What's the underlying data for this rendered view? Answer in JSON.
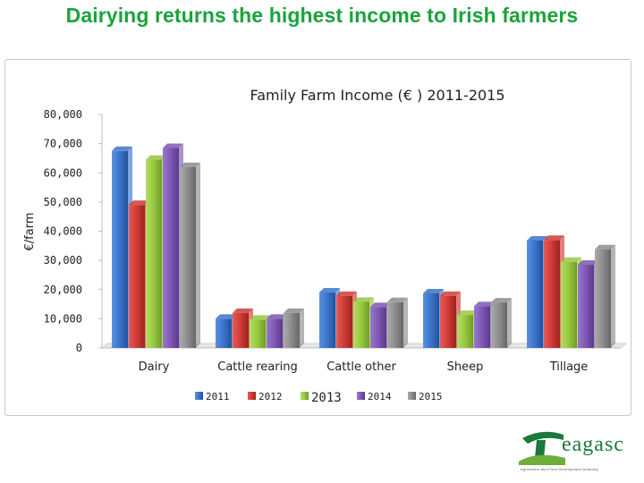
{
  "page": {
    "title": "Dairying returns the highest income to Irish farmers",
    "logo_text": "eagasc",
    "logo_subtext": "Agriculture and Food Development Authority"
  },
  "colors": {
    "title": "#1aa33c",
    "series": [
      "#3a73c9",
      "#cf3a35",
      "#97c83f",
      "#7e57b4",
      "#8c8c8c"
    ]
  },
  "chart_data": {
    "type": "bar",
    "title": "Family Farm Income (€ ) 2011-2015",
    "xlabel": "",
    "ylabel": "€/farm",
    "ylim": [
      0,
      80000
    ],
    "yticks": [
      0,
      10000,
      20000,
      30000,
      40000,
      50000,
      60000,
      70000,
      80000
    ],
    "ytick_labels": [
      "0",
      "10,000",
      "20,000",
      "30,000",
      "40,000",
      "50,000",
      "60,000",
      "70,000",
      "80,000"
    ],
    "grid": false,
    "legend_position": "bottom",
    "categories": [
      "Dairy",
      "Cattle rearing",
      "Cattle other",
      "Sheep",
      "Tillage"
    ],
    "series": [
      {
        "name": "2011",
        "values": [
          67500,
          10000,
          19000,
          18700,
          36800
        ]
      },
      {
        "name": "2012",
        "values": [
          49000,
          12000,
          17800,
          17800,
          37000
        ]
      },
      {
        "name": "2013",
        "values": [
          64500,
          9700,
          15800,
          11300,
          29500
        ]
      },
      {
        "name": "2014",
        "values": [
          68500,
          10000,
          14000,
          14300,
          28500
        ]
      },
      {
        "name": "2015",
        "values": [
          62000,
          12000,
          15700,
          15600,
          33800
        ]
      }
    ]
  }
}
